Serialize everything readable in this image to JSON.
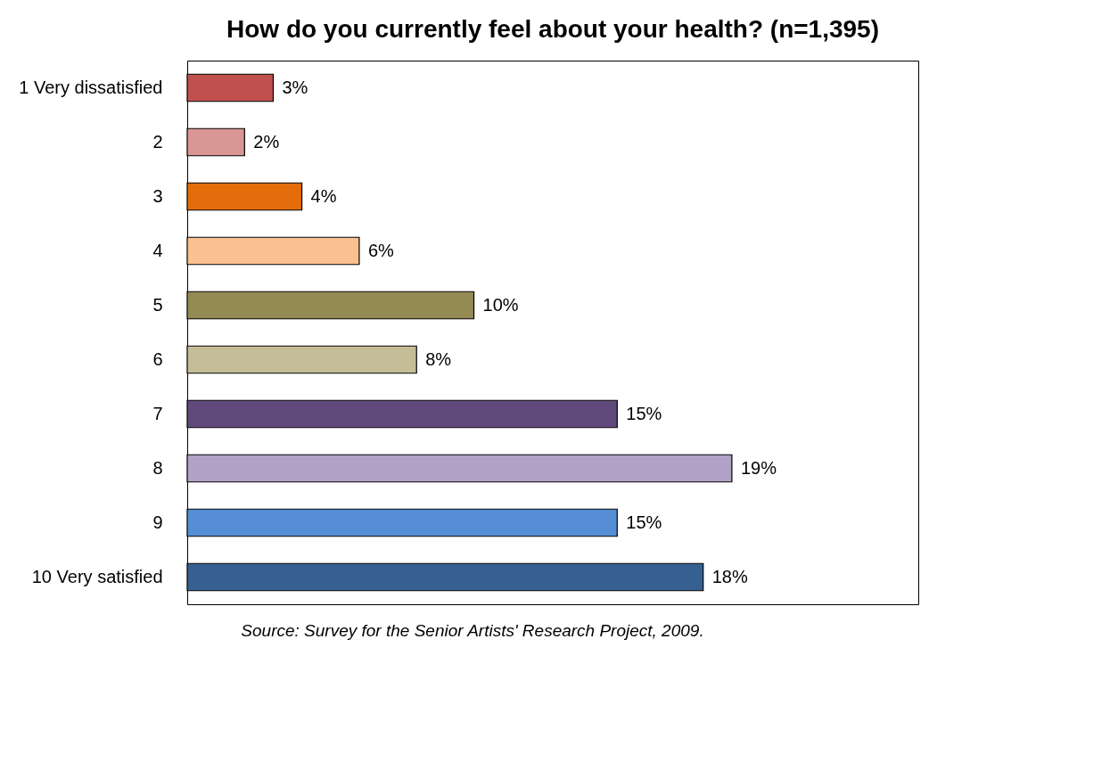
{
  "chart_data": {
    "type": "bar",
    "orientation": "horizontal",
    "title": "How do you currently feel about your health? (n=1,395)",
    "categories": [
      "1 Very dissatisfied",
      "2",
      "3",
      "4",
      "5",
      "6",
      "7",
      "8",
      "9",
      "10 Very satisfied"
    ],
    "values": [
      3,
      2,
      4,
      6,
      10,
      8,
      15,
      19,
      15,
      18
    ],
    "value_labels": [
      "3%",
      "2%",
      "4%",
      "6%",
      "10%",
      "8%",
      "15%",
      "19%",
      "15%",
      "18%"
    ],
    "colors": [
      "#c0504d",
      "#d99694",
      "#e46c0a",
      "#fac090",
      "#948a54",
      "#c4bd97",
      "#604a7b",
      "#b3a2c7",
      "#558ed5",
      "#376092"
    ],
    "annotations": [
      "Source: Survey for the Senior Artists' Research Project, 2009."
    ]
  }
}
